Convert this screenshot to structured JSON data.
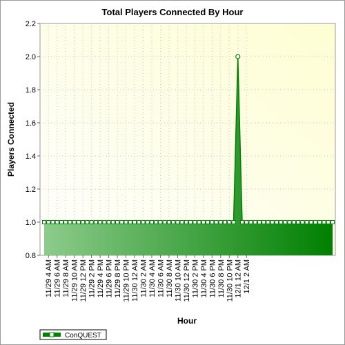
{
  "chart_data": {
    "type": "area",
    "title": "Total Players Connected By Hour",
    "xlabel": "Hour",
    "ylabel": "Players Connected",
    "ylim": [
      0.8,
      2.2
    ],
    "yticks": [
      "0.8",
      "1.0",
      "1.2",
      "1.4",
      "1.6",
      "1.8",
      "2.0",
      "2.2"
    ],
    "x_tick_labels": [
      "11/29 4 AM",
      "11/29 6 AM",
      "11/29 8 AM",
      "11/29 10 AM",
      "11/29 12 PM",
      "11/29 2 PM",
      "11/29 4 PM",
      "11/29 6 PM",
      "11/29 8 PM",
      "11/29 10 PM",
      "11/30 12 AM",
      "11/30 2 AM",
      "11/30 4 AM",
      "11/30 6 AM",
      "11/30 8 AM",
      "11/30 10 AM",
      "11/30 12 PM",
      "11/30 2 PM",
      "11/30 4 PM",
      "11/30 6 PM",
      "11/30 8 PM",
      "11/30 10 PM",
      "12/1 12 AM",
      "12/1 2 AM"
    ],
    "grid": true,
    "legend_position": "bottom-left",
    "series": [
      {
        "name": "ConQUEST",
        "color": "#008000",
        "values": [
          1,
          1,
          1,
          1,
          1,
          1,
          1,
          1,
          1,
          1,
          1,
          1,
          1,
          1,
          1,
          1,
          1,
          1,
          1,
          1,
          1,
          1,
          1,
          1,
          1,
          1,
          1,
          1,
          1,
          1,
          1,
          1,
          1,
          1,
          1,
          1,
          1,
          1,
          1,
          1,
          1,
          1,
          1,
          1,
          1,
          2,
          1,
          1,
          1,
          1,
          1,
          1,
          1,
          1,
          1,
          1,
          1,
          1,
          1,
          1,
          1,
          1,
          1,
          1,
          1,
          1,
          1,
          1
        ]
      }
    ]
  }
}
